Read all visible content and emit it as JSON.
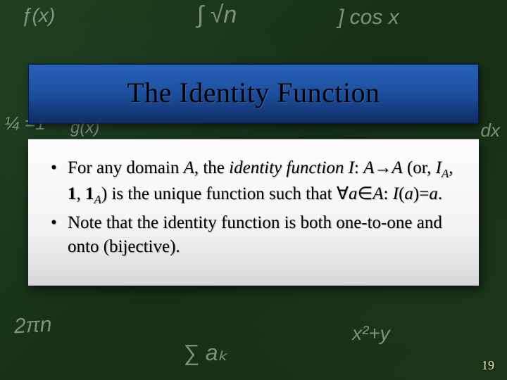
{
  "slide": {
    "title": "The Identity Function",
    "bullets": [
      {
        "prefix": "For any domain ",
        "domainVar": "A",
        "mid1": ", the ",
        "term": "identity function",
        "line2_a": "I",
        "line2_b": ": ",
        "line2_c": "A",
        "arrow": "→",
        "line2_d": "A",
        "line2_e": " (or, ",
        "line2_f": "I",
        "line2_sub1": "A",
        "line2_g": ", ",
        "line2_h": "1",
        "line2_i": ", ",
        "line2_j": "1",
        "line2_sub2": "A",
        "line2_k": ") is the unique function such that ",
        "forall": "∀",
        "line2_l": "a",
        "elem": "∈",
        "line2_m": "A",
        "line2_n": ": ",
        "line2_o": "I",
        "line2_p": "(",
        "line2_q": "a",
        "line2_r": ")=",
        "line2_s": "a",
        "line2_t": "."
      },
      {
        "text": "Note that the identity function is both one-to-one and onto (bijective)."
      }
    ],
    "pageNumber": "19"
  },
  "chalk": {
    "c1": "ƒ(x)",
    "c2": "∫ √n",
    "c3": "] cos x",
    "c4": "¼ =1",
    "c5": "g(x)",
    "c6": "2πn",
    "c7": "∑ aₖ",
    "c8": "x²+y",
    "c9": "dx"
  },
  "style": {
    "titleGradientTop": "#2862b8",
    "titleGradientBottom": "#0f2e66",
    "contentBgTop": "#fdfdfd",
    "contentBgBottom": "#d8d8d8",
    "chalkColor": "rgba(255,255,255,0.45)",
    "pageNumColor": "#f2e9b8",
    "titleFontSize": 40,
    "bodyFontSize": 25
  }
}
